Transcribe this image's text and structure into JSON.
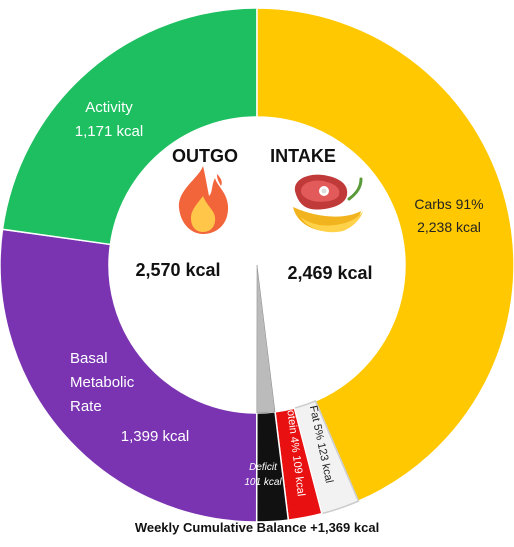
{
  "chart_data": {
    "type": "pie",
    "style": "donut",
    "caption": "Weekly Cumulative Balance +1,369 kcal",
    "outgo": {
      "heading": "OUTGO",
      "total_label": "2,570 kcal",
      "icon": "flame-icon",
      "slices": [
        {
          "key": "activity",
          "lines": [
            "Activity",
            "1,171 kcal"
          ],
          "value": 1171,
          "color": "#1dbf60"
        },
        {
          "key": "bmr",
          "lines": [
            "Basal",
            "Metabolic",
            "Rate"
          ],
          "value_label": "1,399 kcal",
          "value": 1399,
          "color": "#7a34b1"
        }
      ]
    },
    "intake": {
      "heading": "INTAKE",
      "total_label": "2,469 kcal",
      "icon": "food-icon",
      "slices": [
        {
          "key": "carbs",
          "lines": [
            "Carbs 91%",
            "2,238 kcal"
          ],
          "value": 2238,
          "color": "#ffc800"
        },
        {
          "key": "fat",
          "label": "Fat 5% 123 kcal",
          "value": 123,
          "color": "#f2f2f2"
        },
        {
          "key": "protein",
          "label": "Protein 4% 109 kcal",
          "value": 109,
          "color": "#e81010"
        },
        {
          "key": "deficit",
          "lines": [
            "Deficit",
            "101 kcal"
          ],
          "value": 101,
          "color": "#111111"
        }
      ]
    },
    "colors": {
      "deficit_wedge": "#bbbbbb",
      "center": "#ffffff"
    }
  }
}
